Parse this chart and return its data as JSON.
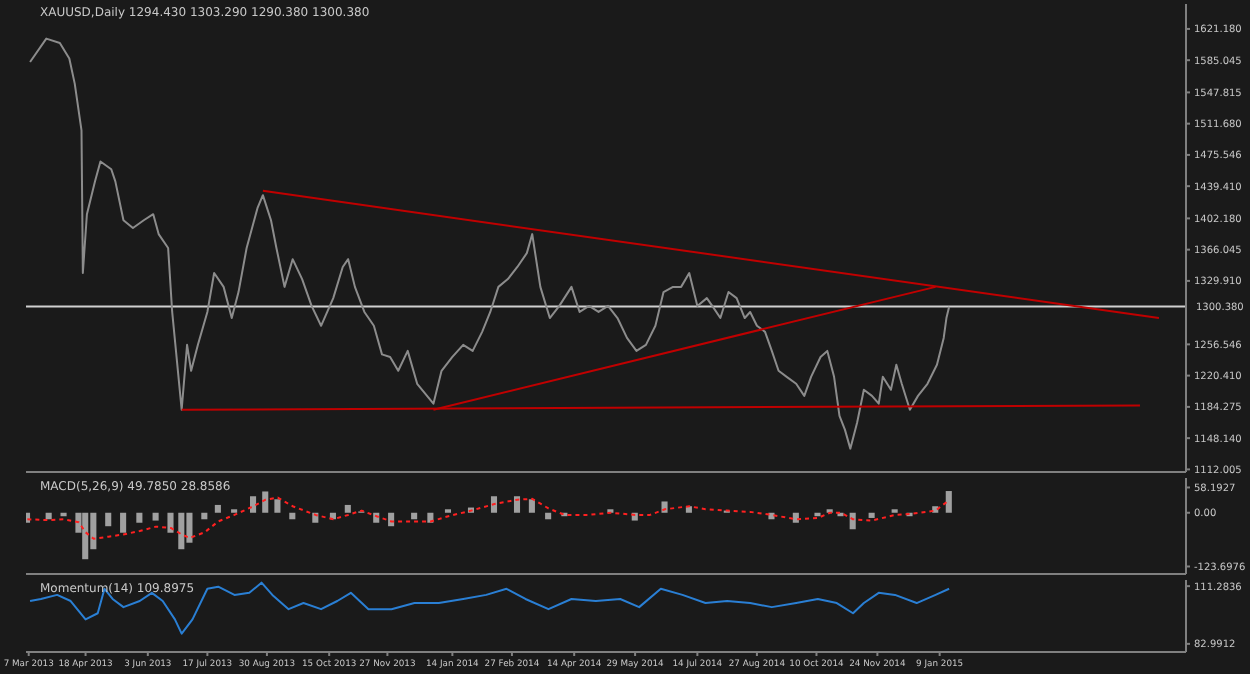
{
  "chart_data": [
    {
      "type": "line",
      "title": "XAUUSD,Daily 1294.430 1303.290 1290.380 1300.380",
      "tick_labels": "y",
      "xlim": [
        "2013-03-05",
        "2015-07-10"
      ],
      "ylim": [
        1109,
        1650
      ],
      "yticks": [
        1112.005,
        {
          "value": 1148.14,
          "label": "1148.140"
        },
        1184.275,
        {
          "value": 1220.41,
          "label": "1220.410"
        },
        1256.546,
        {
          "value": 1329.91,
          "label": "1329.910"
        },
        1366.045,
        {
          "value": 1402.18,
          "label": "1402.180"
        },
        {
          "value": 1439.41,
          "label": "1439.410"
        },
        1475.546,
        {
          "value": 1511.68,
          "label": "1511.680"
        },
        1547.815,
        1585.045,
        {
          "value": 1621.18,
          "label": "1621.180"
        }
      ],
      "ref_lines": [
        {
          "axis": "y",
          "value": 1300.38,
          "label": "1300.380",
          "color": "#d0d0d0"
        }
      ],
      "series": [
        {
          "color": "#8c8c8c",
          "x": [
            "2013-03-08",
            "2013-03-20",
            "2013-03-30",
            "2013-04-06",
            "2013-04-10",
            "2013-04-15",
            "2013-04-16",
            "2013-04-19",
            "2013-04-25",
            "2013-04-29",
            "2013-05-07",
            "2013-05-10",
            "2013-05-16",
            "2013-05-23",
            "2013-05-31",
            "2013-06-07",
            "2013-06-11",
            "2013-06-18",
            "2013-06-21",
            "2013-06-28",
            "2013-07-02",
            "2013-07-05",
            "2013-07-10",
            "2013-07-17",
            "2013-07-22",
            "2013-07-29",
            "2013-08-04",
            "2013-08-09",
            "2013-08-15",
            "2013-08-23",
            "2013-08-27",
            "2013-09-02",
            "2013-09-06",
            "2013-09-12",
            "2013-09-18",
            "2013-09-25",
            "2013-10-02",
            "2013-10-09",
            "2013-10-18",
            "2013-10-25",
            "2013-10-29",
            "2013-11-03",
            "2013-11-10",
            "2013-11-17",
            "2013-11-23",
            "2013-11-29",
            "2013-12-05",
            "2013-12-12",
            "2013-12-19",
            "2013-12-31",
            "2014-01-06",
            "2014-01-14",
            "2014-01-22",
            "2014-01-29",
            "2014-02-05",
            "2014-02-11",
            "2014-02-17",
            "2014-02-24",
            "2014-03-03",
            "2014-03-10",
            "2014-03-14",
            "2014-03-20",
            "2014-03-27",
            "2014-04-03",
            "2014-04-12",
            "2014-04-18",
            "2014-04-25",
            "2014-05-02",
            "2014-05-09",
            "2014-05-16",
            "2014-05-23",
            "2014-05-30",
            "2014-06-06",
            "2014-06-13",
            "2014-06-19",
            "2014-06-26",
            "2014-07-02",
            "2014-07-08",
            "2014-07-14",
            "2014-07-21",
            "2014-07-25",
            "2014-07-31",
            "2014-08-06",
            "2014-08-12",
            "2014-08-18",
            "2014-08-22",
            "2014-08-27",
            "2014-09-02",
            "2014-09-07",
            "2014-09-12",
            "2014-09-18",
            "2014-09-25",
            "2014-10-01",
            "2014-10-06",
            "2014-10-13",
            "2014-10-18",
            "2014-10-23",
            "2014-10-27",
            "2014-10-31",
            "2014-11-04",
            "2014-11-09",
            "2014-11-14",
            "2014-11-20",
            "2014-11-25",
            "2014-11-28",
            "2014-12-04",
            "2014-12-08",
            "2014-12-12",
            "2014-12-18",
            "2014-12-24",
            "2014-12-31",
            "2015-01-07",
            "2015-01-12",
            "2015-01-14",
            "2015-01-16"
          ],
          "values": [
            1583,
            1610,
            1605,
            1587,
            1558,
            1504,
            1339,
            1407,
            1445,
            1468,
            1459,
            1445,
            1400,
            1391,
            1400,
            1407,
            1384,
            1368,
            1294,
            1181,
            1256,
            1226,
            1256,
            1294,
            1339,
            1323,
            1287,
            1317,
            1368,
            1414,
            1429,
            1400,
            1368,
            1323,
            1355,
            1332,
            1301,
            1278,
            1310,
            1346,
            1355,
            1323,
            1294,
            1278,
            1245,
            1242,
            1226,
            1249,
            1211,
            1188,
            1226,
            1242,
            1256,
            1249,
            1271,
            1294,
            1323,
            1332,
            1346,
            1362,
            1384,
            1323,
            1287,
            1301,
            1323,
            1294,
            1301,
            1294,
            1301,
            1287,
            1264,
            1249,
            1256,
            1278,
            1317,
            1323,
            1323,
            1339,
            1301,
            1310,
            1301,
            1287,
            1317,
            1310,
            1287,
            1294,
            1278,
            1271,
            1249,
            1226,
            1219,
            1211,
            1197,
            1219,
            1242,
            1249,
            1219,
            1174,
            1158,
            1136,
            1166,
            1204,
            1197,
            1188,
            1219,
            1204,
            1233,
            1211,
            1181,
            1197,
            1211,
            1233,
            1264,
            1287,
            1300
          ]
        },
        {
          "color": "#c00000",
          "x": [
            "2013-08-27",
            "2015-06-20"
          ],
          "values": [
            1434,
            1287
          ]
        },
        {
          "color": "#c00000",
          "x": [
            "2013-12-31",
            "2015-01-06"
          ],
          "values": [
            1181,
            1323
          ]
        },
        {
          "color": "#c00000",
          "x": [
            "2013-06-28",
            "2015-06-06"
          ],
          "values": [
            1181,
            1186
          ]
        }
      ]
    },
    {
      "type": "bar",
      "title": "MACD(5,26,9) 49.7850 28.8586",
      "tick_labels": "y",
      "xlim": [
        "2013-03-05",
        "2015-07-10"
      ],
      "ylim": [
        -141,
        80
      ],
      "yticks": [
        -123.6976,
        {
          "value": 0,
          "label": "0.00"
        },
        58.1927
      ],
      "x": [
        "2013-03-06",
        "2013-03-22",
        "2013-04-02",
        "2013-04-13",
        "2013-04-18",
        "2013-04-24",
        "2013-05-05",
        "2013-05-16",
        "2013-05-28",
        "2013-06-09",
        "2013-06-20",
        "2013-06-28",
        "2013-07-04",
        "2013-07-15",
        "2013-07-25",
        "2013-08-06",
        "2013-08-20",
        "2013-08-29",
        "2013-09-07",
        "2013-09-18",
        "2013-10-05",
        "2013-10-18",
        "2013-10-29",
        "2013-11-08",
        "2013-11-19",
        "2013-11-30",
        "2013-12-17",
        "2013-12-29",
        "2014-01-11",
        "2014-01-28",
        "2014-02-14",
        "2014-03-03",
        "2014-03-14",
        "2014-03-26",
        "2014-04-07",
        "2014-04-24",
        "2014-05-11",
        "2014-05-29",
        "2014-06-09",
        "2014-06-20",
        "2014-07-08",
        "2014-07-20",
        "2014-08-05",
        "2014-08-22",
        "2014-09-07",
        "2014-09-25",
        "2014-10-11",
        "2014-10-20",
        "2014-10-28",
        "2014-11-06",
        "2014-11-20",
        "2014-12-07",
        "2014-12-18",
        "2015-01-06",
        "2015-01-16"
      ],
      "series": [
        {
          "type": "bar",
          "color": "#a0a0a0",
          "values": [
            -23,
            -15,
            -8,
            -46,
            -107,
            -84,
            -31,
            -46,
            -23,
            -18,
            -46,
            -84,
            -69,
            -15,
            18,
            8,
            38,
            49,
            31,
            -15,
            -23,
            -15,
            18,
            3,
            -23,
            -31,
            -15,
            -23,
            8,
            12,
            38,
            38,
            31,
            -15,
            -8,
            0,
            8,
            -18,
            0,
            26,
            15,
            0,
            5,
            0,
            -15,
            -23,
            -8,
            8,
            -8,
            -38,
            -12,
            8,
            -8,
            15,
            50
          ]
        },
        {
          "type": "line",
          "color": "#ff2020",
          "line_style": "dotted",
          "values": [
            -15,
            -17,
            -15,
            -22,
            -45,
            -60,
            -55,
            -50,
            -42,
            -32,
            -35,
            -50,
            -58,
            -45,
            -20,
            -5,
            15,
            30,
            35,
            15,
            -5,
            -15,
            -5,
            5,
            -8,
            -20,
            -20,
            -20,
            -8,
            5,
            20,
            30,
            32,
            10,
            -5,
            -5,
            0,
            -5,
            -5,
            8,
            15,
            8,
            5,
            2,
            -5,
            -15,
            -12,
            0,
            0,
            -15,
            -18,
            -5,
            -3,
            5,
            29
          ]
        }
      ]
    },
    {
      "type": "line",
      "title": "Momentum(14) 109.8975",
      "xlim": [
        "2013-03-05",
        "2015-07-10"
      ],
      "ylim": [
        79,
        114.3
      ],
      "yticks": [
        82.9912,
        111.2836
      ],
      "xticks": [
        {
          "value": "2013-03-07",
          "label": "7 Mar 2013"
        },
        {
          "value": "2013-04-18",
          "label": "18 Apr 2013"
        },
        {
          "value": "2013-06-03",
          "label": "3 Jun 2013"
        },
        {
          "value": "2013-07-17",
          "label": "17 Jul 2013"
        },
        {
          "value": "2013-08-30",
          "label": "30 Aug 2013"
        },
        {
          "value": "2013-10-15",
          "label": "15 Oct 2013"
        },
        {
          "value": "2013-11-27",
          "label": "27 Nov 2013"
        },
        {
          "value": "2014-01-14",
          "label": "14 Jan 2014"
        },
        {
          "value": "2014-02-27",
          "label": "27 Feb 2014"
        },
        {
          "value": "2014-04-14",
          "label": "14 Apr 2014"
        },
        {
          "value": "2014-05-29",
          "label": "29 May 2014"
        },
        {
          "value": "2014-07-14",
          "label": "14 Jul 2014"
        },
        {
          "value": "2014-08-27",
          "label": "27 Aug 2014"
        },
        {
          "value": "2014-10-10",
          "label": "10 Oct 2014"
        },
        {
          "value": "2014-11-24",
          "label": "24 Nov 2014"
        },
        {
          "value": "2015-01-09",
          "label": "9 Jan 2015"
        }
      ],
      "x": [
        "2013-03-08",
        "2013-03-16",
        "2013-03-28",
        "2013-04-07",
        "2013-04-18",
        "2013-04-27",
        "2013-05-02",
        "2013-05-08",
        "2013-05-16",
        "2013-05-28",
        "2013-06-06",
        "2013-06-14",
        "2013-06-23",
        "2013-06-28",
        "2013-07-06",
        "2013-07-17",
        "2013-07-25",
        "2013-08-06",
        "2013-08-17",
        "2013-08-26",
        "2013-09-03",
        "2013-09-15",
        "2013-09-26",
        "2013-10-09",
        "2013-10-21",
        "2013-10-31",
        "2013-11-13",
        "2013-11-30",
        "2013-12-17",
        "2014-01-04",
        "2014-01-22",
        "2014-02-08",
        "2014-02-23",
        "2014-03-09",
        "2014-03-26",
        "2014-04-12",
        "2014-04-30",
        "2014-05-18",
        "2014-06-01",
        "2014-06-17",
        "2014-07-03",
        "2014-07-20",
        "2014-08-05",
        "2014-08-22",
        "2014-09-07",
        "2014-09-25",
        "2014-10-11",
        "2014-10-25",
        "2014-11-06",
        "2014-11-14",
        "2014-11-25",
        "2014-12-07",
        "2014-12-23",
        "2015-01-06",
        "2015-01-16"
      ],
      "series": [
        {
          "color": "#2a7fd4",
          "values": [
            104,
            105,
            107,
            104,
            95,
            98,
            110,
            105,
            101,
            104,
            108,
            104,
            95,
            88,
            95,
            110,
            111,
            107,
            108,
            113,
            107,
            100,
            103,
            100,
            104,
            108,
            100,
            100,
            103,
            103,
            105,
            107,
            110,
            105,
            100,
            105,
            104,
            105,
            101,
            110,
            107,
            103,
            104,
            103,
            101,
            103,
            105,
            103,
            98,
            103,
            108,
            107,
            103,
            107,
            110
          ]
        }
      ]
    }
  ]
}
